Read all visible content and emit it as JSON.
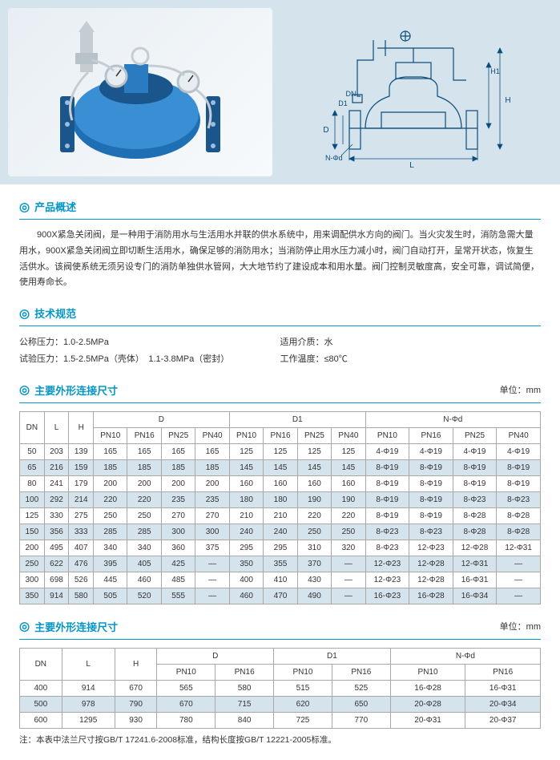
{
  "sections": {
    "overview_title": "产品概述",
    "overview_text": "900X紧急关闭阀，是一种用于消防用水与生活用水并联的供水系统中，用来调配供水方向的阀门。当火灾发生时，消防急需大量用水，900X紧急关闭阀立即切断生活用水，确保足够的消防用水；当消防停止用水压力减小时，阀门自动打开，呈常开状态，恢复生活供水。该阀使系统无须另设专门的消防单独供水管网，大大地节约了建设成本和用水量。阀门控制灵敏度高，安全可靠，调试简便，使用寿命长。",
    "spec_title": "技术规范",
    "specs": {
      "p_nominal_label": "公称压力：",
      "p_nominal_value": "1.0-2.5MPa",
      "p_test_label": "试验压力：",
      "p_test_value": "1.5-2.5MPa（壳体）　1.1-3.8MPa（密封）",
      "medium_label": "适用介质：",
      "medium_value": "水",
      "temp_label": "工作温度：",
      "temp_value": "≤80℃"
    },
    "dim_title": "主要外形连接尺寸",
    "unit_label": "单位：mm",
    "footnote": "注：本表中法兰尺寸按GB/T 17241.6-2008标准，结构长度按GB/T 12221-2005标准。"
  },
  "table1": {
    "group_headers": [
      "DN",
      "L",
      "H",
      "D",
      "D1",
      "N-Φd"
    ],
    "sub_headers": [
      "PN10",
      "PN16",
      "PN25",
      "PN40",
      "PN10",
      "PN16",
      "PN25",
      "PN40",
      "PN10",
      "PN16",
      "PN25",
      "PN40"
    ],
    "rows": [
      [
        "50",
        "203",
        "139",
        "165",
        "165",
        "165",
        "165",
        "125",
        "125",
        "125",
        "125",
        "4-Φ19",
        "4-Φ19",
        "4-Φ19",
        "4-Φ19"
      ],
      [
        "65",
        "216",
        "159",
        "185",
        "185",
        "185",
        "185",
        "145",
        "145",
        "145",
        "145",
        "8-Φ19",
        "8-Φ19",
        "8-Φ19",
        "8-Φ19"
      ],
      [
        "80",
        "241",
        "179",
        "200",
        "200",
        "200",
        "200",
        "160",
        "160",
        "160",
        "160",
        "8-Φ19",
        "8-Φ19",
        "8-Φ19",
        "8-Φ19"
      ],
      [
        "100",
        "292",
        "214",
        "220",
        "220",
        "235",
        "235",
        "180",
        "180",
        "190",
        "190",
        "8-Φ19",
        "8-Φ19",
        "8-Φ23",
        "8-Φ23"
      ],
      [
        "125",
        "330",
        "275",
        "250",
        "250",
        "270",
        "270",
        "210",
        "210",
        "220",
        "220",
        "8-Φ19",
        "8-Φ19",
        "8-Φ28",
        "8-Φ28"
      ],
      [
        "150",
        "356",
        "333",
        "285",
        "285",
        "300",
        "300",
        "240",
        "240",
        "250",
        "250",
        "8-Φ23",
        "8-Φ23",
        "8-Φ28",
        "8-Φ28"
      ],
      [
        "200",
        "495",
        "407",
        "340",
        "340",
        "360",
        "375",
        "295",
        "295",
        "310",
        "320",
        "8-Φ23",
        "12-Φ23",
        "12-Φ28",
        "12-Φ31"
      ],
      [
        "250",
        "622",
        "476",
        "395",
        "405",
        "425",
        "—",
        "350",
        "355",
        "370",
        "—",
        "12-Φ23",
        "12-Φ28",
        "12-Φ31",
        "—"
      ],
      [
        "300",
        "698",
        "526",
        "445",
        "460",
        "485",
        "—",
        "400",
        "410",
        "430",
        "—",
        "12-Φ23",
        "12-Φ28",
        "16-Φ31",
        "—"
      ],
      [
        "350",
        "914",
        "580",
        "505",
        "520",
        "555",
        "—",
        "460",
        "470",
        "490",
        "—",
        "16-Φ23",
        "16-Φ28",
        "16-Φ34",
        "—"
      ]
    ]
  },
  "table2": {
    "group_headers": [
      "DN",
      "L",
      "H",
      "D",
      "D1",
      "N-Φd"
    ],
    "sub_headers": [
      "PN10",
      "PN16",
      "PN10",
      "PN16",
      "PN10",
      "PN16"
    ],
    "rows": [
      [
        "400",
        "914",
        "670",
        "565",
        "580",
        "515",
        "525",
        "16-Φ28",
        "16-Φ31"
      ],
      [
        "500",
        "978",
        "790",
        "670",
        "715",
        "620",
        "650",
        "20-Φ28",
        "20-Φ34"
      ],
      [
        "600",
        "1295",
        "930",
        "780",
        "840",
        "725",
        "770",
        "20-Φ31",
        "20-Φ37"
      ]
    ]
  },
  "diagram_labels": {
    "D": "D",
    "D1": "D1",
    "DN": "DN",
    "L": "L",
    "H": "H",
    "H1": "H1",
    "NPhd": "N-Φd"
  },
  "colors": {
    "accent": "#0596c6",
    "panel_bg": "#d5e3ed",
    "valve_body": "#1e6fb4",
    "valve_highlight": "#3a8fd4",
    "flange": "#1a558c",
    "gauge_metal": "#b8c2c9",
    "drawing_line": "#0a4c7a"
  }
}
